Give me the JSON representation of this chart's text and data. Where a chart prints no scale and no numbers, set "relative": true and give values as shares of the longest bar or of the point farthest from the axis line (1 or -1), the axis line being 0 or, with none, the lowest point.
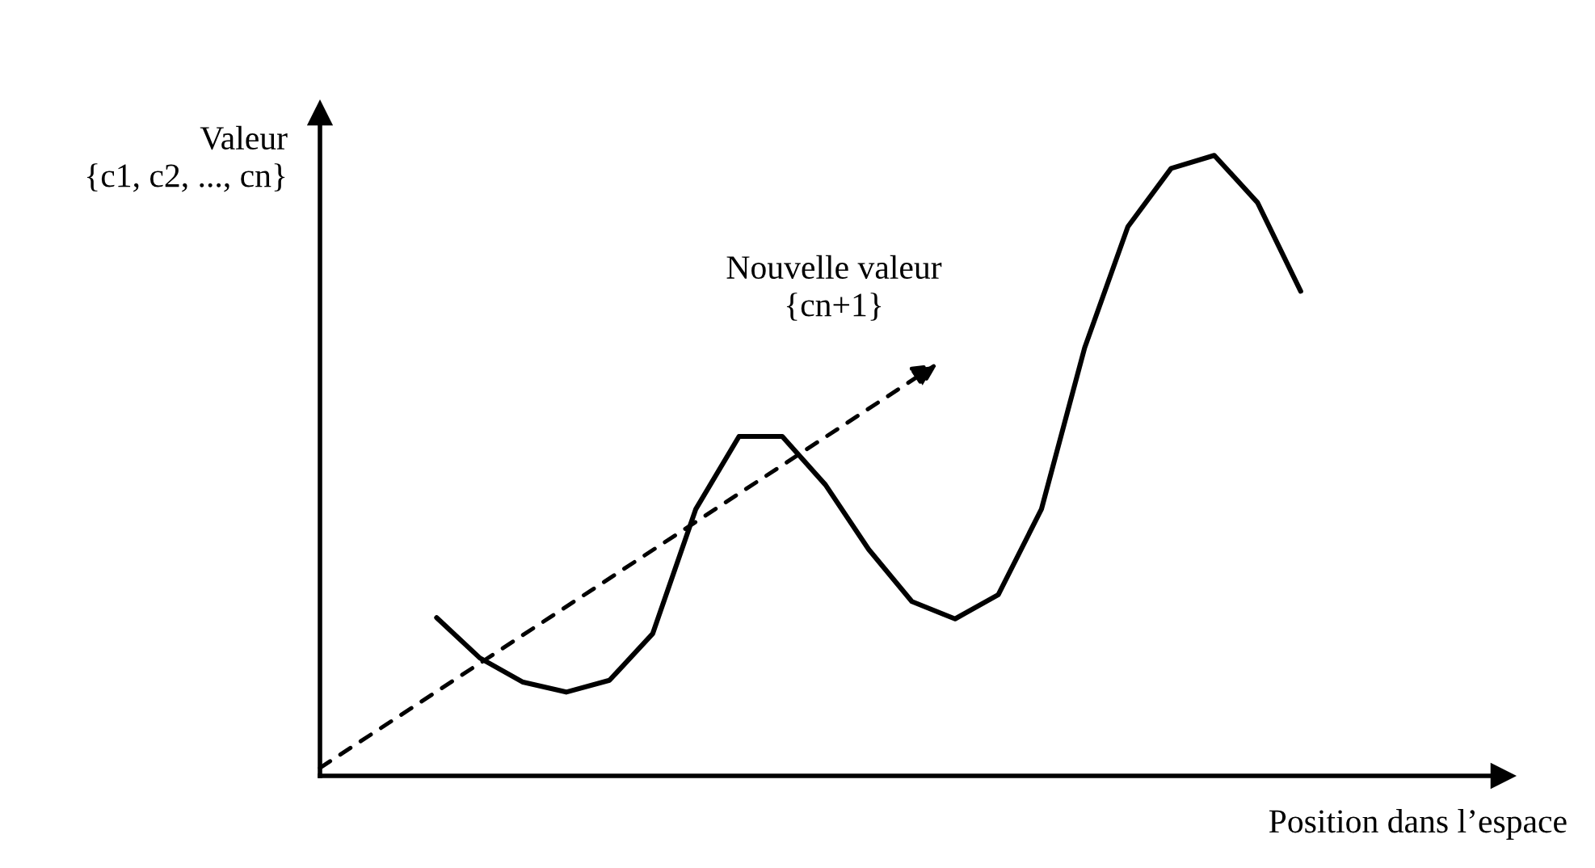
{
  "chart_data": {
    "type": "line",
    "relative": true,
    "marker": "none",
    "line_style": "solid",
    "ylabel": "Valeur\n{c1, c2, ..., cn}",
    "xlabel": "Position dans l’espace",
    "annotations": [
      "Nouvelle valeur\n{cn+1}"
    ],
    "categories": [
      null,
      null,
      null,
      null,
      null,
      null,
      null,
      null,
      null,
      null,
      null,
      null,
      null,
      null,
      null,
      null,
      null,
      null,
      null,
      null,
      null
    ],
    "series": [
      {
        "color": "#000000",
        "values": [
          0.255,
          0.19,
          0.151,
          0.135,
          0.154,
          0.229,
          0.43,
          0.547,
          0.547,
          0.469,
          0.365,
          0.281,
          0.253,
          0.292,
          0.43,
          0.69,
          0.885,
          0.979,
          1.0,
          0.924,
          0.781
        ]
      }
    ]
  }
}
